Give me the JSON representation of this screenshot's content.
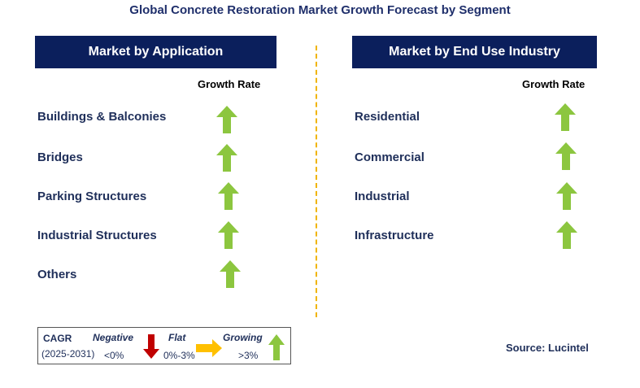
{
  "title": "Global Concrete Restoration Market Growth Forecast by Segment",
  "left_panel": {
    "header": "Market by Application",
    "growth_rate_label": "Growth Rate",
    "rows": [
      {
        "label": "Buildings & Balconies",
        "trend": "growing"
      },
      {
        "label": "Bridges",
        "trend": "growing"
      },
      {
        "label": "Parking Structures",
        "trend": "growing"
      },
      {
        "label": "Industrial Structures",
        "trend": "growing"
      },
      {
        "label": "Others",
        "trend": "growing"
      }
    ]
  },
  "right_panel": {
    "header": "Market by End Use Industry",
    "growth_rate_label": "Growth Rate",
    "rows": [
      {
        "label": "Residential",
        "trend": "growing"
      },
      {
        "label": "Commercial",
        "trend": "growing"
      },
      {
        "label": "Industrial",
        "trend": "growing"
      },
      {
        "label": "Infrastructure",
        "trend": "growing"
      }
    ]
  },
  "legend": {
    "cagr": "CAGR",
    "period": "(2025-2031)",
    "negative": {
      "label": "Negative",
      "range": "<0%",
      "icon": "red-down-arrow-icon"
    },
    "flat": {
      "label": "Flat",
      "range": "0%-3%",
      "icon": "yellow-right-arrow-icon"
    },
    "growing": {
      "label": "Growing",
      "range": ">3%",
      "icon": "green-up-arrow-icon"
    }
  },
  "source": "Source: Lucintel",
  "colors": {
    "header_bg": "#0b1f5c",
    "growing": "#8cc63f",
    "flat": "#ffc000",
    "negative": "#c00000",
    "divider": "#f0b400"
  }
}
